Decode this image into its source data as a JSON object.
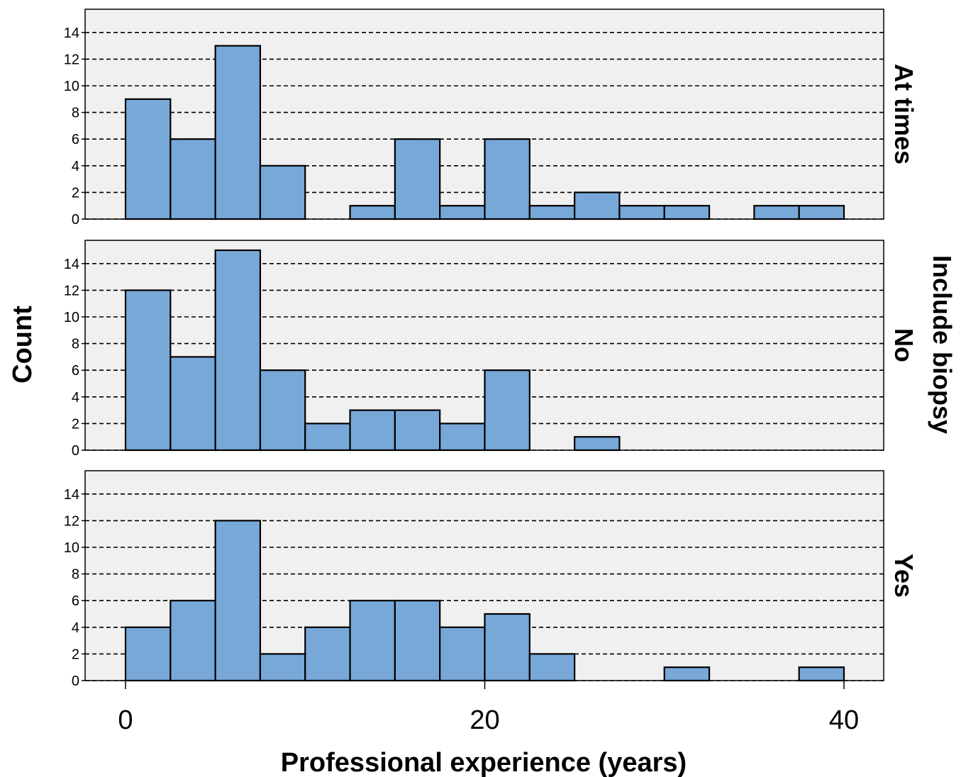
{
  "chart_data": {
    "type": "bar",
    "subtype": "faceted-histogram",
    "xlabel": "Professional experience (years)",
    "ylabel": "Count",
    "facet_title": "Include biopsy",
    "bin_width": 2.5,
    "bin_starts": [
      0,
      2.5,
      5,
      7.5,
      10,
      12.5,
      15,
      17.5,
      20,
      22.5,
      25,
      27.5,
      30,
      32.5,
      35,
      37.5
    ],
    "xlim": [
      0,
      40
    ],
    "xticks": [
      0,
      20,
      40
    ],
    "ylim": [
      0,
      15
    ],
    "yticks": [
      0,
      2,
      4,
      6,
      8,
      10,
      12,
      14
    ],
    "grid": "horizontal dashed",
    "bar_color": "#78a8d8",
    "panel_background": "#f0f0f0",
    "series": [
      {
        "name": "At times",
        "values": [
          9,
          6,
          13,
          4,
          0,
          1,
          6,
          1,
          6,
          1,
          2,
          1,
          1,
          0,
          1,
          1
        ]
      },
      {
        "name": "No",
        "values": [
          12,
          7,
          15,
          6,
          2,
          3,
          3,
          2,
          6,
          0,
          1,
          0,
          0,
          0,
          0,
          0
        ]
      },
      {
        "name": "Yes",
        "values": [
          4,
          6,
          12,
          2,
          4,
          6,
          6,
          4,
          5,
          2,
          0,
          0,
          1,
          0,
          0,
          1
        ]
      }
    ]
  }
}
